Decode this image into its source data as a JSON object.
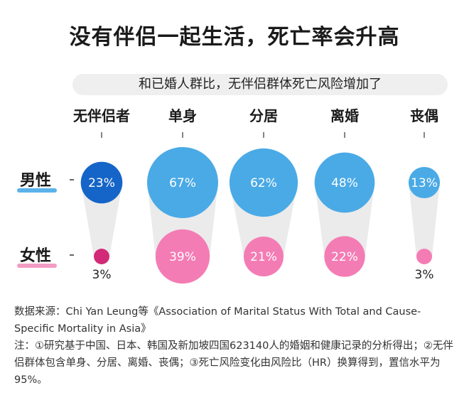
{
  "header": {
    "title": "没有伴侣一起生活，死亡率会升高",
    "subtitle": "和已婚人群比，无伴侣群体死亡风险增加了"
  },
  "colors": {
    "male_dark": "#1565c8",
    "male": "#4aaae6",
    "female_dark": "#d22a78",
    "female": "#f47cb4",
    "connector": "#ebebeb",
    "label_underline_male": "#5bb3ea",
    "label_underline_female": "#f29cc5"
  },
  "chart_data": {
    "type": "bubble",
    "title": "没有伴侣一起生活，死亡率会升高",
    "subtitle": "和已婚人群比，无伴侣群体死亡风险增加了",
    "categories": [
      "无伴侣者",
      "单身",
      "分居",
      "离婚",
      "丧偶"
    ],
    "series": [
      {
        "name": "男性",
        "values": [
          23,
          67,
          62,
          48,
          13
        ],
        "labels": [
          "23%",
          "67%",
          "62%",
          "48%",
          "13%"
        ]
      },
      {
        "name": "女性",
        "values": [
          3,
          39,
          21,
          22,
          3
        ],
        "labels": [
          "3%",
          "39%",
          "21%",
          "22%",
          "3%"
        ]
      }
    ],
    "unit": "%"
  },
  "notes": {
    "source": "数据来源：Chi Yan Leung等《Association of Marital Status With Total and Cause-Specific Mortality in Asia》",
    "note": "注：①研究基于中国、日本、韩国及新加坡四国623140人的婚姻和健康记录的分析得出；②无伴侣群体包含单身、分居、离婚、丧偶；③死亡风险变化由风险比（HR）换算得到，置信水平为95%。"
  }
}
